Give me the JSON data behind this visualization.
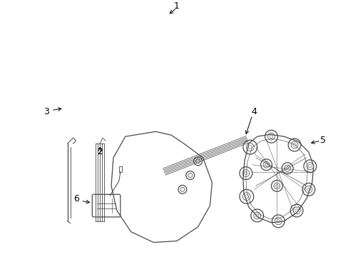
{
  "background_color": "#ffffff",
  "line_color": "#4a4a4a",
  "text_color": "#000000",
  "fig_width": 4.89,
  "fig_height": 3.6,
  "dpi": 100
}
